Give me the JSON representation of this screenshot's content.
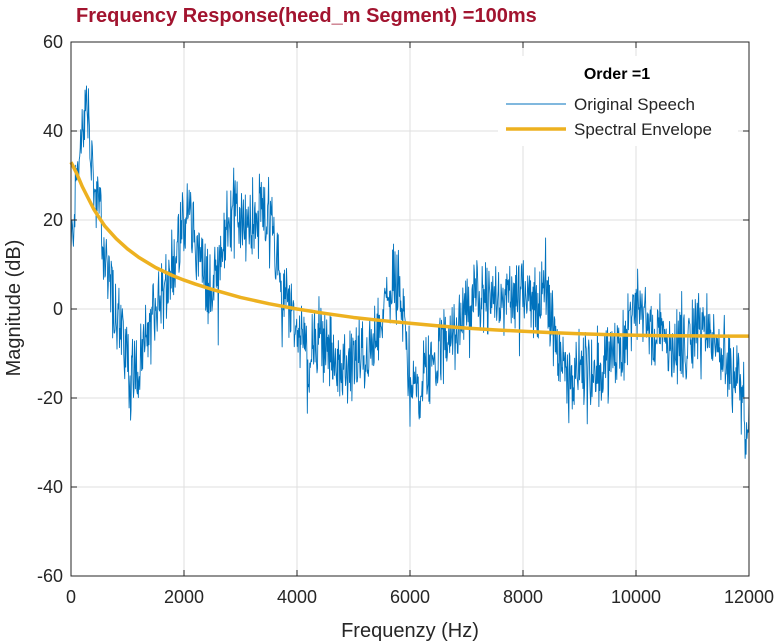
{
  "chart_data": {
    "type": "line",
    "title": "Frequency Response(heed_m Segment) =100ms",
    "xlabel": "Frequenzy (Hz)",
    "ylabel": "Magnitude (dB)",
    "xlim": [
      0,
      12000
    ],
    "ylim": [
      -60,
      60
    ],
    "x_ticks": [
      0,
      2000,
      4000,
      6000,
      8000,
      10000,
      12000
    ],
    "y_ticks": [
      -60,
      -40,
      -20,
      0,
      20,
      40,
      60
    ],
    "grid": true,
    "legend": {
      "title": "Order =1",
      "placement": "top-right"
    },
    "series": [
      {
        "name": "Original Speech",
        "color": "#0072BD",
        "style": "thin-noisy",
        "x": [
          0,
          100,
          200,
          280,
          400,
          500,
          600,
          700,
          800,
          900,
          1000,
          1050,
          1100,
          1200,
          1300,
          1400,
          1500,
          1600,
          1700,
          1800,
          1900,
          2000,
          2100,
          2200,
          2300,
          2400,
          2500,
          2600,
          2700,
          2800,
          2900,
          3000,
          3100,
          3200,
          3300,
          3400,
          3500,
          3600,
          3700,
          3800,
          3900,
          4000,
          4200,
          4400,
          4600,
          4800,
          5000,
          5200,
          5400,
          5600,
          5700,
          5800,
          5900,
          6000,
          6100,
          6200,
          6300,
          6400,
          6600,
          6800,
          7000,
          7200,
          7400,
          7600,
          7800,
          8000,
          8200,
          8400,
          8500,
          8600,
          8700,
          8800,
          9000,
          9200,
          9400,
          9600,
          9800,
          10000,
          10100,
          10200,
          10300,
          10400,
          10600,
          10800,
          11000,
          11200,
          11400,
          11600,
          11800,
          11900,
          12000
        ],
        "y": [
          12,
          30,
          38,
          46,
          28,
          22,
          12,
          5,
          0,
          -6,
          -10,
          -18,
          -12,
          -15,
          -8,
          -5,
          0,
          4,
          6,
          10,
          14,
          18,
          22,
          16,
          10,
          6,
          4,
          10,
          16,
          20,
          22,
          20,
          18,
          21,
          18,
          22,
          20,
          16,
          6,
          2,
          -2,
          -4,
          -12,
          -6,
          -10,
          -14,
          -12,
          -10,
          -8,
          2,
          8,
          4,
          -4,
          -14,
          -18,
          -16,
          -12,
          -14,
          -8,
          -4,
          0,
          4,
          2,
          0,
          4,
          6,
          2,
          4,
          -2,
          -8,
          -12,
          -16,
          -12,
          -14,
          -12,
          -12,
          -6,
          0,
          2,
          -4,
          -8,
          -4,
          -8,
          -8,
          -6,
          -4,
          -8,
          -12,
          -16,
          -22,
          -28
        ]
      },
      {
        "name": "Spectral Envelope",
        "color": "#EDB120",
        "style": "thick-smooth",
        "x": [
          0,
          100,
          200,
          300,
          400,
          500,
          600,
          800,
          1000,
          1200,
          1500,
          1800,
          2000,
          2200,
          2500,
          3000,
          3500,
          4000,
          4500,
          5000,
          5500,
          6000,
          6500,
          7000,
          7500,
          8000,
          8500,
          9000,
          9500,
          10000,
          10500,
          11000,
          11500,
          12000
        ],
        "y": [
          33,
          30.5,
          27.5,
          25,
          22.5,
          20.5,
          18.6,
          15.8,
          13.5,
          11.6,
          9.3,
          7.5,
          6.5,
          5.6,
          4.4,
          2.6,
          1.2,
          0,
          -1,
          -1.9,
          -2.6,
          -3.2,
          -3.8,
          -4.3,
          -4.7,
          -5,
          -5.3,
          -5.55,
          -5.75,
          -5.9,
          -6,
          -6.05,
          -6.1,
          -6.1
        ]
      }
    ]
  }
}
